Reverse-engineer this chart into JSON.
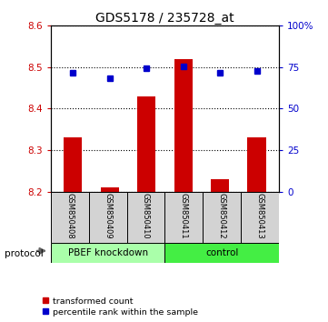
{
  "title": "GDS5178 / 235728_at",
  "samples": [
    "GSM850408",
    "GSM850409",
    "GSM850410",
    "GSM850411",
    "GSM850412",
    "GSM850413"
  ],
  "red_values": [
    8.33,
    8.21,
    8.43,
    8.52,
    8.23,
    8.33
  ],
  "blue_values": [
    8.487,
    8.473,
    8.498,
    8.502,
    8.487,
    8.49
  ],
  "ylim": [
    8.2,
    8.6
  ],
  "yticks_left": [
    8.2,
    8.3,
    8.4,
    8.5,
    8.6
  ],
  "yticks_right": [
    0,
    25,
    50,
    75,
    100
  ],
  "yticks_right_labels": [
    "0",
    "25",
    "50",
    "75",
    "100%"
  ],
  "bar_color": "#cc0000",
  "dot_color": "#0000cc",
  "bar_width": 0.5,
  "left_label_color": "#cc0000",
  "right_label_color": "#0000cc",
  "protocol_label": "protocol",
  "legend_red": "transformed count",
  "legend_blue": "percentile rank within the sample",
  "group1_color": "#aaffaa",
  "group2_color": "#44ee44",
  "label_bg_color": "#d3d3d3"
}
